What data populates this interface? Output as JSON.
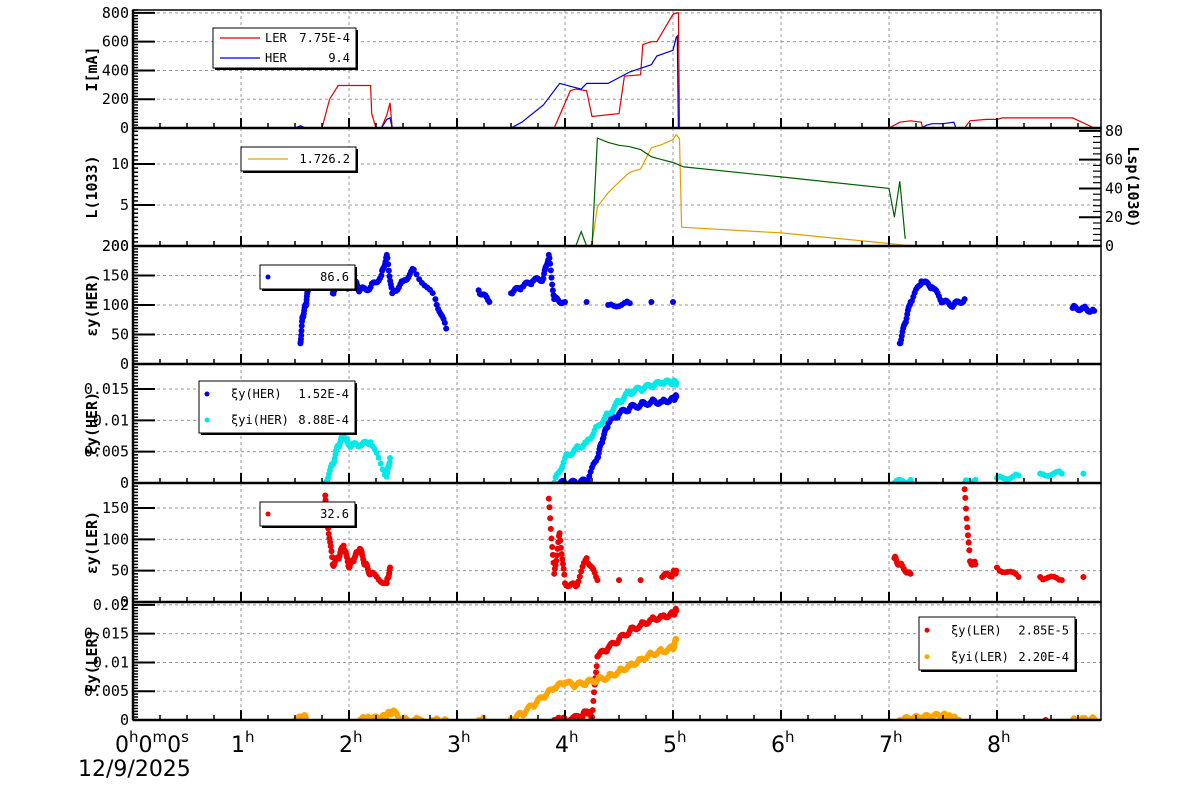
{
  "chart_data": {
    "type": "line",
    "title": "",
    "date_label": "12/9/2025",
    "x_axis": {
      "unit": "hours",
      "range": [
        0,
        8.96
      ],
      "tick_labels": [
        "0h0m0s",
        "1h",
        "2h",
        "3h",
        "4h",
        "5h",
        "6h",
        "7h",
        "8h"
      ],
      "tick_values": [
        0,
        1,
        2,
        3,
        4,
        5,
        6,
        7,
        8
      ],
      "grid": true
    },
    "panels": [
      {
        "id": "current",
        "ylabel": "I[mA]",
        "ylim": [
          0,
          820
        ],
        "yticks": [
          0,
          200,
          400,
          600,
          800
        ],
        "legend": [
          {
            "name": "LER",
            "value": "7.75E-4",
            "color": "#e00000",
            "style": "line"
          },
          {
            "name": "HER",
            "value": "9.4",
            "color": "#0000d0",
            "style": "line"
          }
        ],
        "series": [
          {
            "name": "LER",
            "color": "#e00000",
            "type": "line",
            "x": [
              0,
              1.5,
              1.55,
              1.6,
              1.75,
              1.82,
              1.9,
              2.1,
              2.2,
              2.21,
              2.25,
              2.3,
              2.35,
              2.38,
              2.4,
              3.5,
              3.6,
              3.7,
              3.8,
              3.85,
              3.9,
              4.05,
              4.1,
              4.2,
              4.25,
              4.5,
              4.55,
              4.7,
              4.72,
              4.8,
              4.85,
              5.0,
              5.04,
              5.05,
              5.06,
              5.1,
              7.0,
              7.1,
              7.2,
              7.3,
              7.31,
              7.7,
              7.75,
              7.9,
              8.0,
              8.05,
              8.5,
              8.7,
              8.9
            ],
            "y": [
              0,
              0,
              10,
              0,
              0,
              200,
              295,
              295,
              295,
              100,
              0,
              0,
              90,
              175,
              0,
              0,
              0,
              0,
              0,
              0,
              0,
              260,
              270,
              260,
              80,
              100,
              360,
              370,
              580,
              600,
              600,
              790,
              800,
              800,
              0,
              0,
              0,
              40,
              50,
              40,
              0,
              0,
              50,
              60,
              60,
              70,
              70,
              70,
              0
            ]
          },
          {
            "name": "HER",
            "color": "#0000d0",
            "type": "line",
            "x": [
              0,
              1.5,
              1.55,
              1.6,
              2.3,
              2.35,
              2.38,
              2.4,
              3.5,
              3.6,
              3.8,
              3.95,
              4.0,
              4.05,
              4.15,
              4.2,
              4.4,
              4.6,
              4.8,
              4.85,
              5.0,
              5.03,
              5.04,
              5.05,
              7.3,
              7.35,
              7.4,
              7.5,
              7.6,
              7.62,
              8.9
            ],
            "y": [
              0,
              0,
              15,
              0,
              0,
              60,
              70,
              0,
              0,
              40,
              160,
              310,
              300,
              290,
              270,
              310,
              310,
              390,
              440,
              500,
              540,
              630,
              640,
              0,
              0,
              20,
              30,
              30,
              40,
              0,
              0
            ]
          }
        ]
      },
      {
        "id": "luminosity",
        "ylabel": "L(10^33)",
        "ylabel_right": "Lsp(10^30)",
        "ylim": [
          0,
          14.4
        ],
        "yticks": [
          5,
          10
        ],
        "ylim_right": [
          0,
          82
        ],
        "yticks_right": [
          0,
          20,
          40,
          60,
          80
        ],
        "legend": [
          {
            "name": "",
            "value": "1.726.2",
            "color": "#e0a000",
            "style": "line"
          }
        ],
        "series": [
          {
            "name": "L",
            "color": "#e0a000",
            "type": "line",
            "x": [
              0,
              4.2,
              4.25,
              4.3,
              4.4,
              4.5,
              4.6,
              4.7,
              4.8,
              4.9,
              5.0,
              5.03,
              5.06,
              5.08,
              6.0,
              7.0,
              7.2,
              8.9
            ],
            "y": [
              0,
              0,
              0.2,
              4.8,
              6.5,
              7.8,
              9.0,
              9.4,
              12,
              12.4,
              13.0,
              13.6,
              13.1,
              2.3,
              1.6,
              0.3,
              0,
              0
            ]
          },
          {
            "name": "Lsp",
            "color": "#006000",
            "type": "line",
            "axis": "right",
            "x": [
              4.1,
              4.15,
              4.2,
              4.25,
              4.3,
              4.4,
              4.5,
              4.6,
              4.7,
              4.8,
              4.9,
              5.0,
              5.1,
              6.0,
              7.0,
              7.05,
              7.1,
              7.15
            ],
            "y": [
              0,
              10,
              0,
              0,
              75,
              72,
              70,
              69,
              67,
              62,
              60,
              58,
              55,
              48,
              40,
              20,
              45,
              5
            ]
          }
        ]
      },
      {
        "id": "emittance_her",
        "ylabel": "εy(HER)",
        "ylim": [
          0,
          200
        ],
        "yticks": [
          0,
          50,
          100,
          150,
          200
        ],
        "legend": [
          {
            "name": "",
            "value": "86.6",
            "color": "#0000ee",
            "style": "marker"
          }
        ],
        "series": [
          {
            "name": "εy(HER)",
            "color": "#0000ee",
            "type": "scatter",
            "x": [
              1.55,
              1.57,
              1.6,
              1.62,
              1.85,
              1.9,
              2.0,
              2.05,
              2.1,
              2.2,
              2.3,
              2.35,
              2.4,
              2.5,
              2.6,
              2.8,
              2.9,
              3.2,
              3.3,
              3.5,
              3.6,
              3.7,
              3.8,
              3.85,
              3.9,
              4.0,
              4.2,
              4.4,
              4.6,
              4.8,
              5.0,
              7.1,
              7.15,
              7.2,
              7.3,
              7.4,
              7.5,
              7.6,
              7.7,
              8.7,
              8.8,
              8.9
            ],
            "y": [
              35,
              80,
              100,
              125,
              120,
              135,
              130,
              140,
              125,
              130,
              150,
              185,
              120,
              140,
              160,
              110,
              60,
              125,
              105,
              120,
              130,
              140,
              145,
              185,
              110,
              105,
              105,
              100,
              103,
              105,
              105,
              35,
              70,
              105,
              140,
              130,
              105,
              100,
              110,
              95,
              95,
              90
            ]
          }
        ]
      },
      {
        "id": "tune_her",
        "ylabel": "ξy(HER)",
        "ylim": [
          0,
          0.019
        ],
        "yticks": [
          0,
          0.005,
          0.01,
          0.015
        ],
        "legend": [
          {
            "name": "ξy(HER)",
            "value": "1.52E-4",
            "color": "#0000ee",
            "style": "marker"
          },
          {
            "name": "ξyi(HER)",
            "value": "8.88E-4",
            "color": "#00e8e8",
            "style": "marker"
          }
        ],
        "series": [
          {
            "name": "ξy(HER)",
            "color": "#0000ee",
            "type": "scatter",
            "x": [
              3.9,
              4.0,
              4.1,
              4.2,
              4.3,
              4.35,
              4.4,
              4.5,
              4.6,
              4.7,
              4.8,
              4.9,
              5.0,
              5.03,
              7.2
            ],
            "y": [
              0,
              0,
              0,
              0.0003,
              0.004,
              0.007,
              0.0095,
              0.011,
              0.012,
              0.0125,
              0.013,
              0.013,
              0.0135,
              0.0138,
              0.0002
            ]
          },
          {
            "name": "ξyi(HER)",
            "color": "#00e8e8",
            "type": "scatter",
            "x": [
              1.78,
              1.85,
              1.9,
              1.95,
              2.0,
              2.1,
              2.2,
              2.35,
              2.38,
              3.9,
              4.0,
              4.1,
              4.2,
              4.3,
              4.4,
              4.5,
              4.6,
              4.7,
              4.8,
              4.9,
              5.0,
              5.03,
              7.05,
              7.2,
              7.7,
              7.8,
              8.0,
              8.2,
              8.4,
              8.6,
              8.8
            ],
            "y": [
              0,
              0.003,
              0.006,
              0.0075,
              0.006,
              0.006,
              0.0065,
              0.001,
              0.004,
              0,
              0.004,
              0.0055,
              0.0065,
              0.009,
              0.011,
              0.013,
              0.0145,
              0.015,
              0.0155,
              0.016,
              0.016,
              0.016,
              0,
              0.0005,
              0,
              0.0005,
              0.0008,
              0.0012,
              0.0015,
              0.0015,
              0.0015
            ]
          }
        ]
      },
      {
        "id": "emittance_ler",
        "ylabel": "εy(LER)",
        "ylim": [
          0,
          190
        ],
        "yticks": [
          0,
          50,
          100,
          150
        ],
        "legend": [
          {
            "name": "",
            "value": "32.6",
            "color": "#ee0000",
            "style": "marker"
          }
        ],
        "series": [
          {
            "name": "εy(LER)",
            "color": "#ee0000",
            "type": "scatter",
            "x": [
              1.78,
              1.8,
              1.85,
              1.9,
              1.95,
              2.0,
              2.05,
              2.1,
              2.15,
              2.2,
              2.35,
              2.38,
              3.85,
              3.9,
              3.95,
              4.0,
              4.1,
              4.2,
              4.3,
              4.5,
              4.7,
              4.9,
              5.0,
              5.03,
              7.05,
              7.1,
              7.2,
              7.7,
              7.75,
              7.8,
              8.0,
              8.2,
              8.4,
              8.6,
              8.8
            ],
            "y": [
              170,
              130,
              60,
              70,
              90,
              55,
              70,
              85,
              60,
              45,
              30,
              55,
              165,
              45,
              110,
              30,
              25,
              70,
              35,
              35,
              35,
              40,
              45,
              50,
              70,
              60,
              45,
              180,
              65,
              60,
              55,
              40,
              40,
              35,
              40
            ]
          }
        ]
      },
      {
        "id": "tune_ler",
        "ylabel": "ξy(LER)",
        "ylim": [
          0,
          0.0205
        ],
        "yticks": [
          0,
          0.005,
          0.01,
          0.015,
          0.02
        ],
        "legend": [
          {
            "name": "ξy(LER)",
            "value": "2.85E-5",
            "color": "#ee0000",
            "style": "marker"
          },
          {
            "name": "ξyi(LER)",
            "value": "2.20E-4",
            "color": "#ffa500",
            "style": "marker"
          }
        ],
        "series": [
          {
            "name": "ξy(LER)",
            "color": "#ee0000",
            "type": "scatter",
            "x": [
              3.9,
              3.95,
              4.0,
              4.15,
              4.2,
              4.25,
              4.3,
              4.4,
              4.5,
              4.6,
              4.7,
              4.8,
              4.9,
              5.0,
              5.03,
              8.45
            ],
            "y": [
              0,
              0,
              0,
              0.0005,
              0.0015,
              0.0005,
              0.011,
              0.0125,
              0.014,
              0.0155,
              0.0165,
              0.0175,
              0.018,
              0.0185,
              0.019,
              0
            ]
          },
          {
            "name": "ξyi(LER)",
            "color": "#ffa500",
            "type": "scatter",
            "x": [
              1.5,
              1.55,
              1.6,
              2.1,
              2.15,
              2.2,
              2.3,
              2.35,
              2.4,
              2.5,
              2.6,
              2.8,
              2.9,
              3.2,
              3.25,
              3.5,
              3.6,
              3.7,
              3.8,
              3.9,
              4.0,
              4.1,
              4.2,
              4.3,
              4.4,
              4.5,
              4.6,
              4.7,
              4.8,
              4.9,
              5.0,
              5.03,
              7.1,
              7.2,
              7.3,
              7.4,
              7.5,
              7.55,
              7.6,
              7.65,
              8.7,
              8.8,
              8.9
            ],
            "y": [
              0,
              0.0003,
              0.0005,
              0,
              0.0002,
              0.0002,
              0.0003,
              0.0008,
              0.0015,
              0,
              0,
              0,
              0,
              0,
              0,
              0.0002,
              0.001,
              0.0025,
              0.004,
              0.0055,
              0.0065,
              0.006,
              0.0065,
              0.007,
              0.0075,
              0.0085,
              0.0095,
              0.0105,
              0.0115,
              0.012,
              0.0125,
              0.014,
              0,
              0.0002,
              0.0004,
              0.0006,
              0.0008,
              0.0005,
              0.0002,
              0,
              0,
              0.0002,
              0.0002
            ]
          }
        ]
      }
    ]
  }
}
